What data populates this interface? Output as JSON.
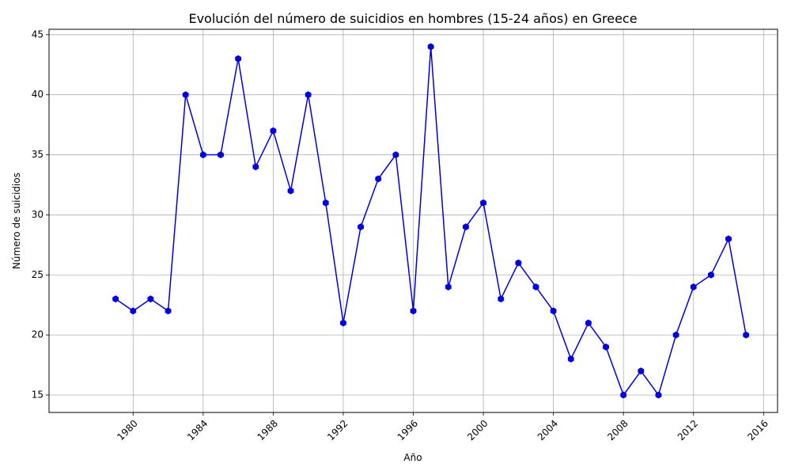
{
  "chart_data": {
    "type": "line",
    "title": "Evolución del número de suicidios en hombres (15-24 años) en Greece",
    "xlabel": "Año",
    "ylabel": "Número de suicidios",
    "x_ticks": [
      "1980",
      "1984",
      "1988",
      "1992",
      "1996",
      "2000",
      "2004",
      "2008",
      "2012",
      "2016"
    ],
    "y_ticks": [
      "15",
      "20",
      "25",
      "30",
      "35",
      "40",
      "45"
    ],
    "xlim": [
      1975.2,
      2016.8
    ],
    "ylim": [
      13.55,
      45.45
    ],
    "grid": true,
    "line_color": "#0000dd",
    "series": [
      {
        "x": [
          1979,
          1980,
          1981,
          1982,
          1983,
          1984,
          1985,
          1986,
          1987,
          1988,
          1989,
          1990,
          1991,
          1992,
          1993,
          1994,
          1995,
          1996,
          1997,
          1998,
          1999,
          2000,
          2001,
          2002,
          2003,
          2004,
          2005,
          2006,
          2007,
          2008,
          2009,
          2010,
          2011,
          2012,
          2013,
          2014,
          2015
        ],
        "values": [
          23,
          22,
          23,
          22,
          40,
          35,
          35,
          43,
          34,
          37,
          32,
          40,
          31,
          21,
          29,
          33,
          35,
          22,
          44,
          24,
          29,
          31,
          23,
          26,
          24,
          22,
          18,
          21,
          19,
          15,
          17,
          15,
          20,
          24,
          25,
          28,
          20
        ]
      }
    ]
  }
}
